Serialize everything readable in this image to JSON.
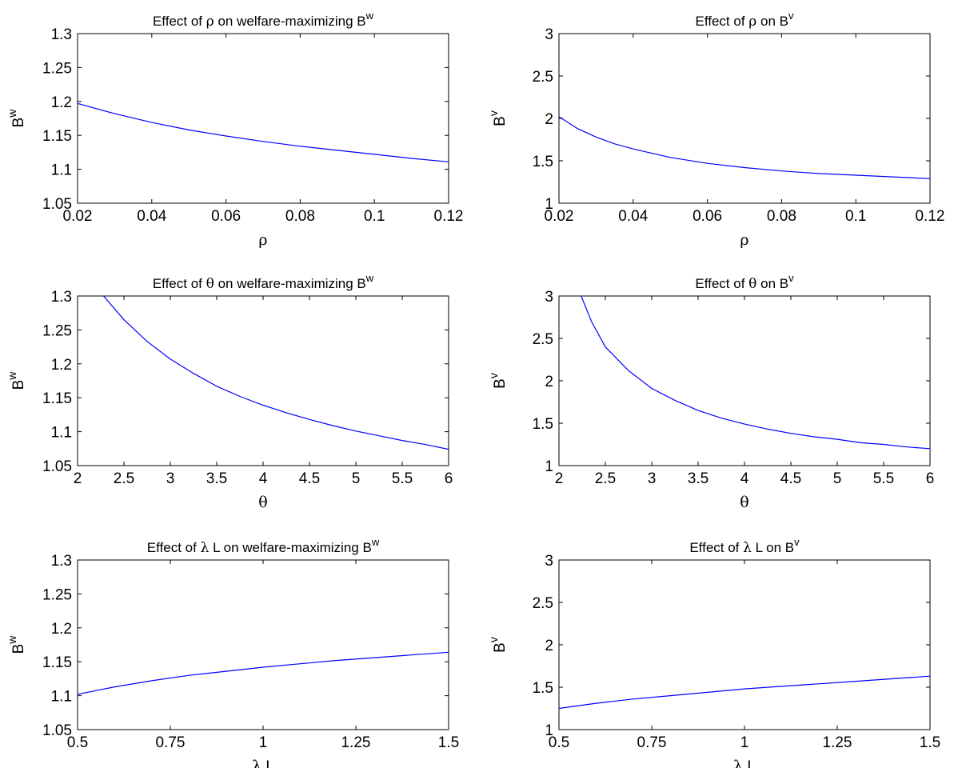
{
  "chart_data": [
    {
      "type": "line",
      "title": {
        "pre": "Effect of ",
        "sym": "ρ",
        "post": " on welfare-maximizing B",
        "sup": "w"
      },
      "xlabel": {
        "sym": "ρ",
        "text": ""
      },
      "ylabel": {
        "base": "B",
        "sup": "w"
      },
      "xlim": [
        0.02,
        0.12
      ],
      "ylim": [
        1.05,
        1.3
      ],
      "xticks": [
        "0.02",
        "0.04",
        "0.06",
        "0.08",
        "0.1",
        "0.12"
      ],
      "yticks": [
        "1.05",
        "1.1",
        "1.15",
        "1.2",
        "1.25",
        "1.3"
      ],
      "series": [
        {
          "color": "#0000ff",
          "x": [
            0.02,
            0.03,
            0.04,
            0.05,
            0.06,
            0.07,
            0.08,
            0.09,
            0.1,
            0.11,
            0.12
          ],
          "y": [
            1.197,
            1.182,
            1.169,
            1.158,
            1.149,
            1.141,
            1.134,
            1.128,
            1.122,
            1.116,
            1.111
          ]
        }
      ]
    },
    {
      "type": "line",
      "title": {
        "pre": "Effect of ",
        "sym": "ρ",
        "post": " on B",
        "sup": "v"
      },
      "xlabel": {
        "sym": "ρ",
        "text": ""
      },
      "ylabel": {
        "base": "B",
        "sup": "v"
      },
      "xlim": [
        0.02,
        0.12
      ],
      "ylim": [
        1,
        3
      ],
      "xticks": [
        "0.02",
        "0.04",
        "0.06",
        "0.08",
        "0.1",
        "0.12"
      ],
      "yticks": [
        "1",
        "1.5",
        "2",
        "2.5",
        "3"
      ],
      "series": [
        {
          "color": "#0000ff",
          "x": [
            0.02,
            0.025,
            0.03,
            0.035,
            0.04,
            0.05,
            0.06,
            0.07,
            0.08,
            0.09,
            0.1,
            0.11,
            0.12
          ],
          "y": [
            2.02,
            1.88,
            1.78,
            1.7,
            1.64,
            1.54,
            1.47,
            1.42,
            1.38,
            1.35,
            1.33,
            1.31,
            1.29
          ]
        }
      ]
    },
    {
      "type": "line",
      "title": {
        "pre": "Effect of ",
        "sym": "θ",
        "post": " on welfare-maximizing B",
        "sup": "w"
      },
      "xlabel": {
        "sym": "θ",
        "text": ""
      },
      "ylabel": {
        "base": "B",
        "sup": "w"
      },
      "xlim": [
        2,
        6
      ],
      "ylim": [
        1.05,
        1.3
      ],
      "xticks": [
        "2",
        "2.5",
        "3",
        "3.5",
        "4",
        "4.5",
        "5",
        "5.5",
        "6"
      ],
      "yticks": [
        "1.05",
        "1.1",
        "1.15",
        "1.2",
        "1.25",
        "1.3"
      ],
      "series": [
        {
          "color": "#0000ff",
          "x": [
            2.28,
            2.5,
            2.75,
            3.0,
            3.25,
            3.5,
            3.75,
            4.0,
            4.25,
            4.5,
            4.75,
            5.0,
            5.25,
            5.5,
            5.75,
            6.0
          ],
          "y": [
            1.3,
            1.265,
            1.233,
            1.207,
            1.186,
            1.167,
            1.152,
            1.139,
            1.128,
            1.118,
            1.109,
            1.101,
            1.094,
            1.087,
            1.081,
            1.074
          ]
        }
      ]
    },
    {
      "type": "line",
      "title": {
        "pre": "Effect of ",
        "sym": "θ",
        "post": " on B",
        "sup": "v"
      },
      "xlabel": {
        "sym": "θ",
        "text": ""
      },
      "ylabel": {
        "base": "B",
        "sup": "v"
      },
      "xlim": [
        2,
        6
      ],
      "ylim": [
        1,
        3
      ],
      "xticks": [
        "2",
        "2.5",
        "3",
        "3.5",
        "4",
        "4.5",
        "5",
        "5.5",
        "6"
      ],
      "yticks": [
        "1",
        "1.5",
        "2",
        "2.5",
        "3"
      ],
      "series": [
        {
          "color": "#0000ff",
          "x": [
            2.24,
            2.35,
            2.5,
            2.75,
            3.0,
            3.25,
            3.5,
            3.75,
            4.0,
            4.25,
            4.5,
            4.75,
            5.0,
            5.25,
            5.5,
            5.75,
            6.0
          ],
          "y": [
            3.0,
            2.7,
            2.4,
            2.12,
            1.91,
            1.77,
            1.65,
            1.56,
            1.49,
            1.43,
            1.38,
            1.34,
            1.31,
            1.27,
            1.25,
            1.22,
            1.2
          ]
        }
      ]
    },
    {
      "type": "line",
      "title": {
        "pre": "Effect of ",
        "sym": "λ",
        "post": " L on welfare-maximizing B",
        "sup": "w"
      },
      "xlabel": {
        "sym": "λ",
        "text": " L"
      },
      "ylabel": {
        "base": "B",
        "sup": "w"
      },
      "xlim": [
        0.5,
        1.5
      ],
      "ylim": [
        1.05,
        1.3
      ],
      "xticks": [
        "0.5",
        "0.75",
        "1",
        "1.25",
        "1.5"
      ],
      "yticks": [
        "1.05",
        "1.1",
        "1.15",
        "1.2",
        "1.25",
        "1.3"
      ],
      "series": [
        {
          "color": "#0000ff",
          "x": [
            0.5,
            0.6,
            0.7,
            0.8,
            0.9,
            1.0,
            1.1,
            1.2,
            1.3,
            1.4,
            1.5
          ],
          "y": [
            1.102,
            1.113,
            1.122,
            1.13,
            1.136,
            1.142,
            1.147,
            1.152,
            1.156,
            1.16,
            1.164
          ]
        }
      ]
    },
    {
      "type": "line",
      "title": {
        "pre": "Effect of ",
        "sym": "λ",
        "post": " L on B",
        "sup": "v"
      },
      "xlabel": {
        "sym": "λ",
        "text": " L"
      },
      "ylabel": {
        "base": "B",
        "sup": "v"
      },
      "xlim": [
        0.5,
        1.5
      ],
      "ylim": [
        1,
        3
      ],
      "xticks": [
        "0.5",
        "0.75",
        "1",
        "1.25",
        "1.5"
      ],
      "yticks": [
        "1",
        "1.5",
        "2",
        "2.5",
        "3"
      ],
      "series": [
        {
          "color": "#0000ff",
          "x": [
            0.5,
            0.6,
            0.7,
            0.8,
            0.9,
            1.0,
            1.1,
            1.2,
            1.3,
            1.4,
            1.5
          ],
          "y": [
            1.25,
            1.31,
            1.36,
            1.4,
            1.44,
            1.48,
            1.51,
            1.54,
            1.57,
            1.6,
            1.63
          ]
        }
      ]
    }
  ]
}
